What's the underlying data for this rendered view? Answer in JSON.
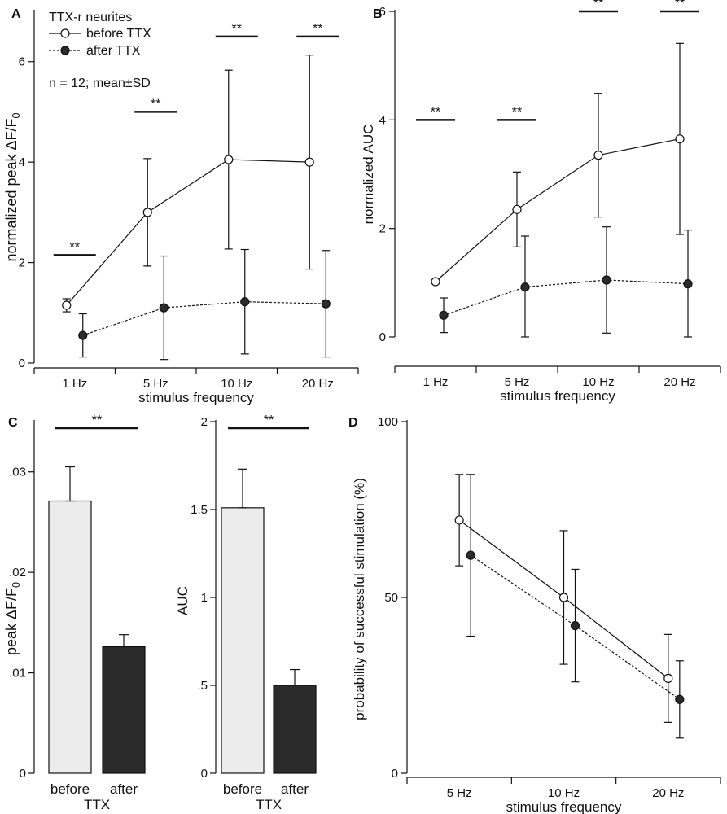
{
  "chart_data": [
    {
      "panel": "A",
      "type": "line",
      "categories": [
        "1 Hz",
        "5 Hz",
        "10 Hz",
        "20 Hz"
      ],
      "xlabel": "stimulus frequency",
      "ylabel": "normalized peak ΔF/F0",
      "ylim": [
        0,
        7
      ],
      "yticks": [
        "0",
        "2",
        "4",
        "6"
      ],
      "legend": {
        "title": "TTX-r neurites",
        "position": "top-left"
      },
      "annotation": "n = 12; mean±SD",
      "significance": [
        "**",
        "**",
        "**",
        "**"
      ],
      "series": [
        {
          "name": "before TTX",
          "style": "open-circle-solid",
          "values": [
            1.15,
            3.0,
            4.05,
            4.0
          ],
          "sd": [
            0.13,
            1.07,
            1.78,
            2.13
          ]
        },
        {
          "name": "after TTX",
          "style": "filled-circle-dotted",
          "values": [
            0.55,
            1.1,
            1.22,
            1.18
          ],
          "sd": [
            0.43,
            1.03,
            1.04,
            1.06
          ]
        }
      ]
    },
    {
      "panel": "B",
      "type": "line",
      "categories": [
        "1 Hz",
        "5 Hz",
        "10 Hz",
        "20 Hz"
      ],
      "xlabel": "stimulus frequency",
      "ylabel": "normalized AUC",
      "ylim": [
        0,
        6
      ],
      "yticks": [
        "0",
        "2",
        "4",
        "6"
      ],
      "significance": [
        "**",
        "**",
        "**",
        "**"
      ],
      "series": [
        {
          "name": "before TTX",
          "style": "open-circle-solid",
          "values": [
            1.02,
            2.35,
            3.35,
            3.65
          ],
          "sd": [
            0,
            0.69,
            1.14,
            1.76
          ]
        },
        {
          "name": "after TTX",
          "style": "filled-circle-dotted",
          "values": [
            0.4,
            0.92,
            1.05,
            0.98
          ],
          "sd": [
            0.32,
            0.94,
            0.98,
            0.99
          ]
        }
      ]
    },
    {
      "panel": "C",
      "type": "bar",
      "categories": [
        "before",
        "after"
      ],
      "group_label": "TTX",
      "ylabel": "peak ΔF/F0",
      "ylim": [
        0,
        0.035
      ],
      "yticks": [
        "0",
        ".01",
        ".02",
        ".03"
      ],
      "significance": "**",
      "values": [
        0.0271,
        0.0126
      ],
      "error": [
        0.0034,
        0.0012
      ]
    },
    {
      "panel": "C",
      "type": "bar",
      "categories": [
        "before",
        "after"
      ],
      "group_label": "TTX",
      "ylabel": "AUC",
      "ylim": [
        0,
        2
      ],
      "yticks": [
        "0",
        ".5",
        "1",
        "1.5",
        "2"
      ],
      "significance": "**",
      "values": [
        1.51,
        0.5
      ],
      "error": [
        0.22,
        0.09
      ]
    },
    {
      "panel": "D",
      "type": "line",
      "categories": [
        "5 Hz",
        "10 Hz",
        "20 Hz"
      ],
      "xlabel": "stimulus frequency",
      "ylabel": "probability of successful stimulation (%)",
      "ylim": [
        0,
        100
      ],
      "yticks": [
        "0",
        "50",
        "100"
      ],
      "series": [
        {
          "name": "before TTX",
          "style": "open-circle-solid",
          "values": [
            72,
            50,
            27
          ],
          "sd": [
            13,
            19,
            12.5
          ]
        },
        {
          "name": "after TTX",
          "style": "filled-circle-dotted",
          "values": [
            62,
            42,
            21
          ],
          "sd": [
            23,
            16,
            11
          ]
        }
      ]
    }
  ],
  "panel_letters": [
    "A",
    "B",
    "C",
    "D"
  ],
  "colors": {
    "ink": "#111111",
    "bar_before": "#ececec",
    "bar_after": "#2b2b2b",
    "marker_filled": "#2b2b2b"
  }
}
